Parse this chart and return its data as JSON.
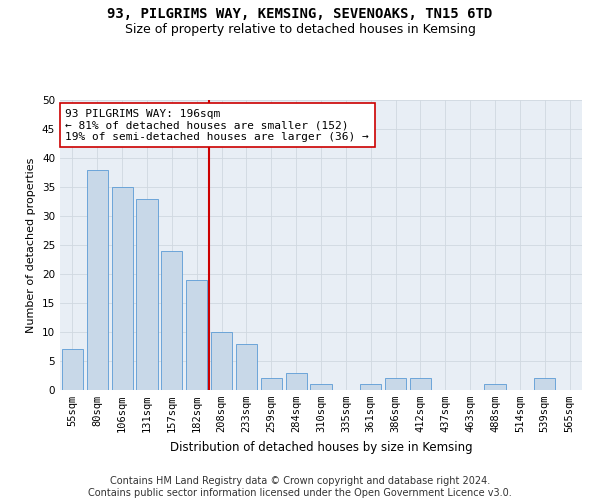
{
  "title": "93, PILGRIMS WAY, KEMSING, SEVENOAKS, TN15 6TD",
  "subtitle": "Size of property relative to detached houses in Kemsing",
  "xlabel": "Distribution of detached houses by size in Kemsing",
  "ylabel": "Number of detached properties",
  "categories": [
    "55sqm",
    "80sqm",
    "106sqm",
    "131sqm",
    "157sqm",
    "182sqm",
    "208sqm",
    "233sqm",
    "259sqm",
    "284sqm",
    "310sqm",
    "335sqm",
    "361sqm",
    "386sqm",
    "412sqm",
    "437sqm",
    "463sqm",
    "488sqm",
    "514sqm",
    "539sqm",
    "565sqm"
  ],
  "values": [
    7,
    38,
    35,
    33,
    24,
    19,
    10,
    8,
    2,
    3,
    1,
    0,
    1,
    2,
    2,
    0,
    0,
    1,
    0,
    2,
    0
  ],
  "bar_color": "#c8d8e8",
  "bar_edge_color": "#5b9bd5",
  "vline_x": 5.5,
  "vline_color": "#cc0000",
  "annotation_text": "93 PILGRIMS WAY: 196sqm\n← 81% of detached houses are smaller (152)\n19% of semi-detached houses are larger (36) →",
  "annotation_box_color": "#ffffff",
  "annotation_box_edge": "#cc0000",
  "ylim": [
    0,
    50
  ],
  "yticks": [
    0,
    5,
    10,
    15,
    20,
    25,
    30,
    35,
    40,
    45,
    50
  ],
  "grid_color": "#d0d8e0",
  "bg_color": "#e8eef5",
  "background_color": "#ffffff",
  "footer_text": "Contains HM Land Registry data © Crown copyright and database right 2024.\nContains public sector information licensed under the Open Government Licence v3.0.",
  "title_fontsize": 10,
  "subtitle_fontsize": 9,
  "xlabel_fontsize": 8.5,
  "ylabel_fontsize": 8,
  "tick_fontsize": 7.5,
  "annotation_fontsize": 8,
  "footer_fontsize": 7
}
